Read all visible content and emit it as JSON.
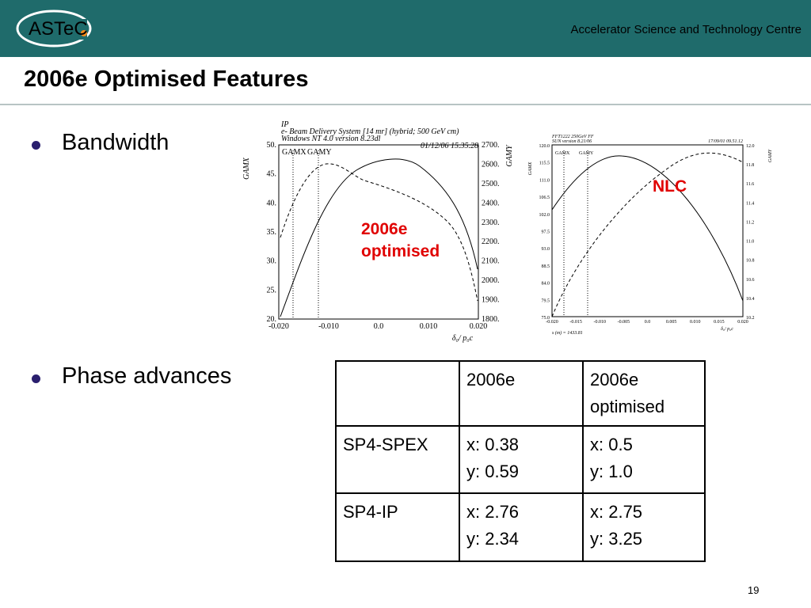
{
  "header": {
    "logo": "ASTeC",
    "organization": "Accelerator Science and Technology Centre"
  },
  "slide": {
    "title": "2006e Optimised Features",
    "page_number": "19"
  },
  "bullets": [
    "Bandwidth",
    "Phase advances"
  ],
  "plots": [
    {
      "header_lines": [
        "IP",
        "e- Beam Delivery System [14 mr] (hybrid; 500 GeV cm)",
        "Windows NT 4.0 version 8.23dl",
        "01/12/06  15.35.28"
      ],
      "legend": [
        "GAMX",
        "GAMY"
      ],
      "y_label": "GAMX",
      "y2_label": "GAMY",
      "x_label": "δ₀/ p₀c",
      "yticks": [
        "50.",
        "45.",
        "40.",
        "35.",
        "30.",
        "25.",
        "20."
      ],
      "y2ticks": [
        "2700.",
        "2600.",
        "2500.",
        "2400.",
        "2300.",
        "2200.",
        "2100.",
        "2000.",
        "1900.",
        "1800."
      ],
      "xticks": [
        "-0.020",
        "-0.010",
        "0.0",
        "0.010",
        "0.020"
      ]
    },
    {
      "header_lines": [
        "FFT1222 250GeV FF",
        "SUN version 8.21/06",
        "17/09/01  09.51.12"
      ],
      "legend": [
        "GAMX",
        "GAMY"
      ],
      "y_label": "GAMX",
      "y2_label": "GAMY",
      "x_label": "δ₀/ p₀c",
      "footer": "s (m) =  1433.81",
      "yticks": [
        "120.0",
        "115.5",
        "111.0",
        "106.5",
        "102.0",
        "97.5",
        "93.0",
        "88.5",
        "84.0",
        "79.5",
        "75.0"
      ],
      "y2ticks": [
        "12.0",
        "11.8",
        "11.6",
        "11.4",
        "11.2",
        "11.0",
        "10.8",
        "10.6",
        "10.4",
        "10.2"
      ],
      "xticks": [
        "-0.020",
        "-0.015",
        "-0.010",
        "-0.005",
        "0.0",
        "0.005",
        "0.010",
        "0.015",
        "0.020"
      ]
    }
  ],
  "annotations": [
    "2006e optimised",
    "NLC"
  ],
  "table": {
    "header": [
      "2006e",
      "2006e optimised"
    ],
    "rows": [
      {
        "label": "SP4-SPEX",
        "cells": [
          [
            "x: 0.38",
            "y: 0.59"
          ],
          [
            "x: 0.5",
            "y: 1.0"
          ]
        ]
      },
      {
        "label": "SP4-IP",
        "cells": [
          [
            "x: 2.76",
            "y: 2.34"
          ],
          [
            "x: 2.75",
            "y: 3.25"
          ]
        ]
      }
    ]
  }
}
